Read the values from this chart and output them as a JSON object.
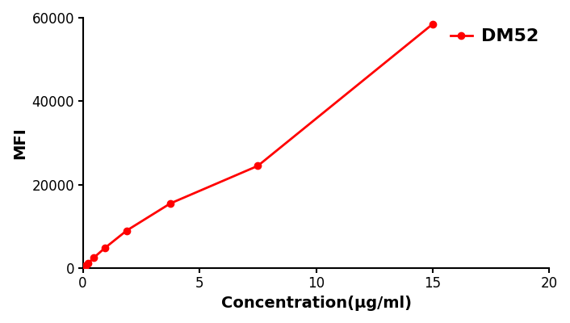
{
  "x_pts": [
    0.0,
    0.06,
    0.12,
    0.23,
    0.47,
    0.94,
    1.88,
    3.75,
    7.5,
    15.0
  ],
  "y_pts": [
    100,
    300,
    600,
    1200,
    2500,
    4800,
    9000,
    15500,
    24500,
    58500
  ],
  "line_color": "#FF0000",
  "marker_color": "#FF0000",
  "marker": "o",
  "marker_size": 6,
  "line_width": 2.0,
  "xlabel": "Concentration(μg/ml)",
  "ylabel": "MFI",
  "xlim": [
    0,
    20
  ],
  "ylim": [
    0,
    60000
  ],
  "xticks": [
    0,
    5,
    10,
    15,
    20
  ],
  "yticks": [
    0,
    20000,
    40000,
    60000
  ],
  "ytick_labels": [
    "0",
    "20000",
    "40000",
    "60000"
  ],
  "legend_label": "DM52",
  "legend_fontsize": 14,
  "axis_label_fontsize": 14,
  "tick_fontsize": 12,
  "figure_width": 7.06,
  "figure_height": 4.0,
  "dpi": 100,
  "background_color": "#FFFFFF"
}
